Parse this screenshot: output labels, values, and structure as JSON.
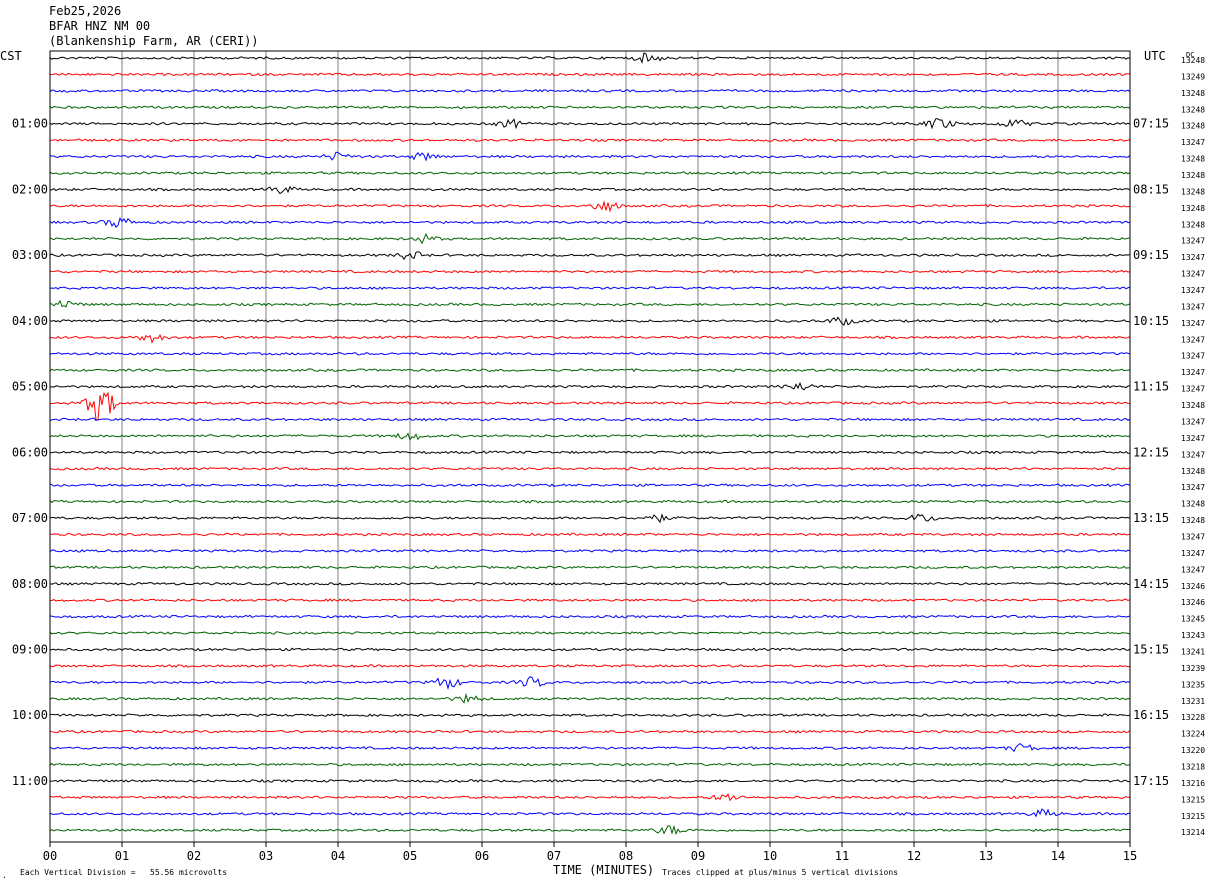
{
  "header": {
    "date": "Feb25,2026",
    "station": "BFAR HNZ NM 00",
    "location": "(Blankenship Farm, AR (CERI))"
  },
  "chart_data": {
    "type": "line",
    "title": "Feb25,2026",
    "left_timezone": "CST",
    "right_timezone": "UTC",
    "dc_label": "DC",
    "xlabel": "TIME (MINUTES)",
    "xlim": [
      0,
      15
    ],
    "x_ticks": [
      "00",
      "01",
      "02",
      "03",
      "04",
      "05",
      "06",
      "07",
      "08",
      "09",
      "10",
      "11",
      "12",
      "13",
      "14",
      "15"
    ],
    "trace_count": 48,
    "trace_colors": [
      "#000000",
      "#ff0000",
      "#0000ff",
      "#006400"
    ],
    "left_hour_labels": [
      "01:00",
      "02:00",
      "03:00",
      "04:00",
      "05:00",
      "06:00",
      "07:00",
      "08:00",
      "09:00",
      "10:00",
      "11:00"
    ],
    "right_hour_labels": [
      "07:15",
      "08:15",
      "09:15",
      "10:15",
      "11:15",
      "12:15",
      "13:15",
      "14:15",
      "15:15",
      "16:15",
      "17:15"
    ],
    "dc_offsets": [
      13248,
      13249,
      13248,
      13248,
      13248,
      13247,
      13248,
      13248,
      13248,
      13248,
      13248,
      13247,
      13247,
      13247,
      13247,
      13247,
      13247,
      13247,
      13247,
      13247,
      13247,
      13248,
      13247,
      13247,
      13247,
      13248,
      13247,
      13248,
      13248,
      13247,
      13247,
      13247,
      13246,
      13246,
      13245,
      13243,
      13241,
      13239,
      13235,
      13231,
      13228,
      13224,
      13220,
      13218,
      13216,
      13215,
      13215,
      13214
    ],
    "events": [
      {
        "trace": 0,
        "minute": 8.3,
        "amplitude": 0.35
      },
      {
        "trace": 4,
        "minute": 6.4,
        "amplitude": 0.3
      },
      {
        "trace": 4,
        "minute": 12.35,
        "amplitude": 0.45
      },
      {
        "trace": 4,
        "minute": 13.4,
        "amplitude": 0.3
      },
      {
        "trace": 6,
        "minute": 4.0,
        "amplitude": 0.3
      },
      {
        "trace": 6,
        "minute": 5.2,
        "amplitude": 0.3
      },
      {
        "trace": 8,
        "minute": 3.2,
        "amplitude": 0.3
      },
      {
        "trace": 9,
        "minute": 7.7,
        "amplitude": 0.45
      },
      {
        "trace": 10,
        "minute": 0.95,
        "amplitude": 0.4
      },
      {
        "trace": 11,
        "minute": 5.2,
        "amplitude": 0.3
      },
      {
        "trace": 12,
        "minute": 5.0,
        "amplitude": 0.3
      },
      {
        "trace": 15,
        "minute": 0.2,
        "amplitude": 0.3
      },
      {
        "trace": 16,
        "minute": 11.0,
        "amplitude": 0.3
      },
      {
        "trace": 17,
        "minute": 1.4,
        "amplitude": 0.35
      },
      {
        "trace": 20,
        "minute": 10.4,
        "amplitude": 0.3
      },
      {
        "trace": 21,
        "minute": 0.7,
        "amplitude": 1.5
      },
      {
        "trace": 23,
        "minute": 5.0,
        "amplitude": 0.3
      },
      {
        "trace": 28,
        "minute": 8.4,
        "amplitude": 0.3
      },
      {
        "trace": 28,
        "minute": 12.1,
        "amplitude": 0.3
      },
      {
        "trace": 38,
        "minute": 5.5,
        "amplitude": 0.45
      },
      {
        "trace": 38,
        "minute": 6.7,
        "amplitude": 0.4
      },
      {
        "trace": 39,
        "minute": 5.8,
        "amplitude": 0.3
      },
      {
        "trace": 42,
        "minute": 13.5,
        "amplitude": 0.3
      },
      {
        "trace": 45,
        "minute": 9.4,
        "amplitude": 0.3
      },
      {
        "trace": 46,
        "minute": 13.8,
        "amplitude": 0.3
      },
      {
        "trace": 47,
        "minute": 8.6,
        "amplitude": 0.35
      }
    ]
  },
  "footer": {
    "scale_note": "Each Vertical Division =   55.56 microvolts",
    "clip_note": "Traces clipped at plus/minus 5 vertical divisions",
    "corner_mark": "."
  }
}
